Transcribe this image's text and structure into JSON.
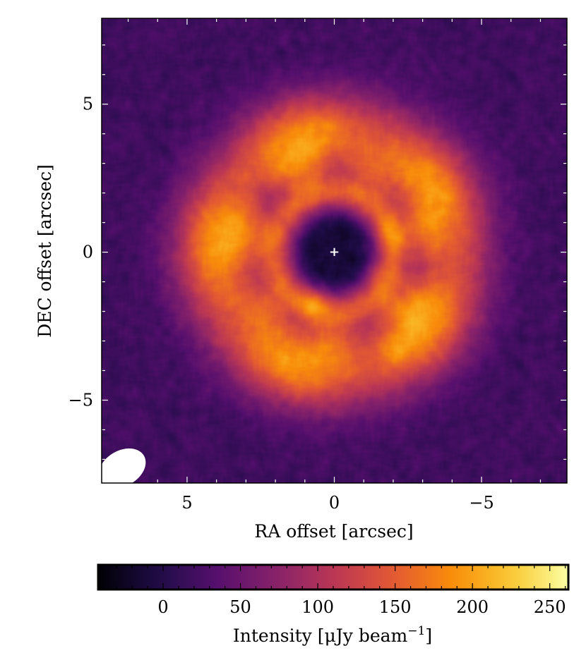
{
  "chart_data": {
    "type": "heatmap",
    "title": "",
    "xlabel": "RA offset [arcsec]",
    "ylabel": "DEC offset [arcsec]",
    "xlim": [
      7.9,
      -7.9
    ],
    "ylim": [
      -7.8,
      7.9
    ],
    "x_ticks": [
      {
        "value": 5,
        "label": "5"
      },
      {
        "value": 0,
        "label": "0"
      },
      {
        "value": -5,
        "label": "−5"
      }
    ],
    "y_ticks": [
      {
        "value": 5,
        "label": "5"
      },
      {
        "value": 0,
        "label": "0"
      },
      {
        "value": -5,
        "label": "−5"
      }
    ],
    "colormap": "inferno",
    "colorbar": {
      "label": "Intensity [μJy beam",
      "label_exponent": "−1",
      "label_suffix": "]",
      "range": [
        -42,
        262
      ],
      "ticks": [
        {
          "value": 0,
          "label": "0"
        },
        {
          "value": 50,
          "label": "50"
        },
        {
          "value": 100,
          "label": "100"
        },
        {
          "value": 150,
          "label": "150"
        },
        {
          "value": 200,
          "label": "200"
        },
        {
          "value": 250,
          "label": "250"
        }
      ],
      "orientation": "horizontal"
    },
    "structure": {
      "outer_ring": {
        "radius_arcsec": 4.0,
        "width_arcsec": 2.2,
        "peak_intensity": 190
      },
      "inner_ring": {
        "radius_arcsec": 2.0,
        "width_arcsec": 0.9,
        "peak_intensity": 220
      },
      "central_cavity": {
        "radius_arcsec": 1.1,
        "intensity": -10
      },
      "background_intensity": 20,
      "bright_clumps": [
        {
          "x": 0.7,
          "y": -1.7,
          "intensity": 250
        },
        {
          "x": -1.8,
          "y": 0.6,
          "intensity": 235
        },
        {
          "x": -1.5,
          "y": -0.6,
          "intensity": 225
        },
        {
          "x": -2.0,
          "y": -3.3,
          "intensity": 230
        }
      ]
    },
    "star_marker": {
      "x": 0,
      "y": 0,
      "symbol": "+",
      "color": "#ffffff"
    },
    "beam": {
      "major_arcsec": 0.85,
      "minor_arcsec": 0.6,
      "pa_deg": 60,
      "color": "#ffffff"
    }
  }
}
